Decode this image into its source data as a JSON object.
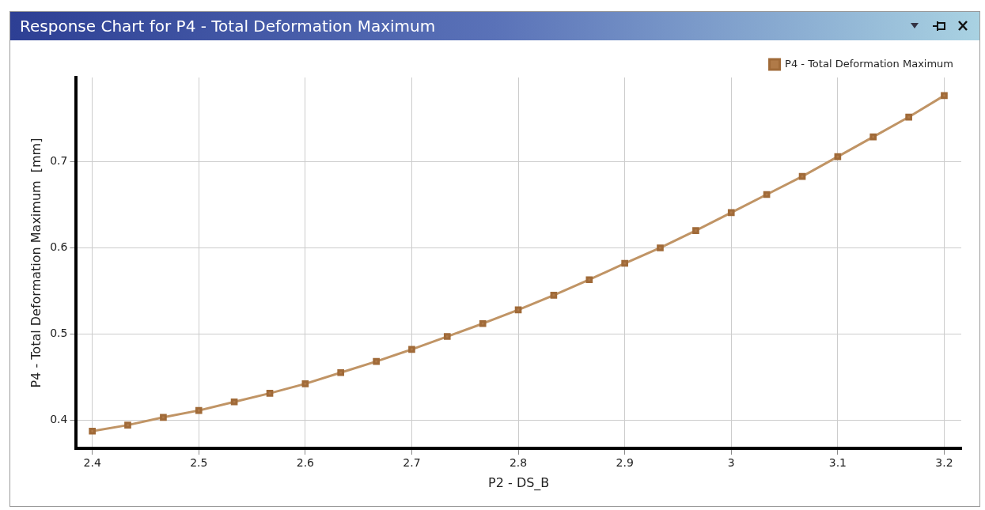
{
  "chart_data": {
    "type": "line",
    "title": "Response Chart for P4 - Total Deformation Maximum",
    "xlabel": "P2 - DS_B",
    "ylabel": "P4 - Total Deformation Maximum  [mm]",
    "x": [
      2.4,
      2.4333,
      2.4667,
      2.5,
      2.5333,
      2.5667,
      2.6,
      2.6333,
      2.6667,
      2.7,
      2.7333,
      2.7667,
      2.8,
      2.8333,
      2.8667,
      2.9,
      2.9333,
      2.9667,
      3.0,
      3.0333,
      3.0667,
      3.1,
      3.1333,
      3.1667,
      3.2
    ],
    "series": [
      {
        "name": "P4 - Total Deformation Maximum",
        "color": "#c09465",
        "values": [
          0.387,
          0.394,
          0.403,
          0.411,
          0.421,
          0.431,
          0.442,
          0.455,
          0.468,
          0.482,
          0.497,
          0.512,
          0.528,
          0.545,
          0.563,
          0.582,
          0.6,
          0.62,
          0.641,
          0.662,
          0.683,
          0.706,
          0.729,
          0.752,
          0.777
        ]
      }
    ],
    "xlim": [
      2.385,
      3.216
    ],
    "ylim": [
      0.367,
      0.798
    ],
    "xticks": [
      2.4,
      2.5,
      2.6,
      2.7,
      2.8,
      2.9,
      3,
      3.1,
      3.2
    ],
    "yticks": [
      0.4,
      0.5,
      0.6,
      0.7
    ],
    "grid": true,
    "legend": "top right",
    "marker": "square",
    "line_style": "solid"
  }
}
